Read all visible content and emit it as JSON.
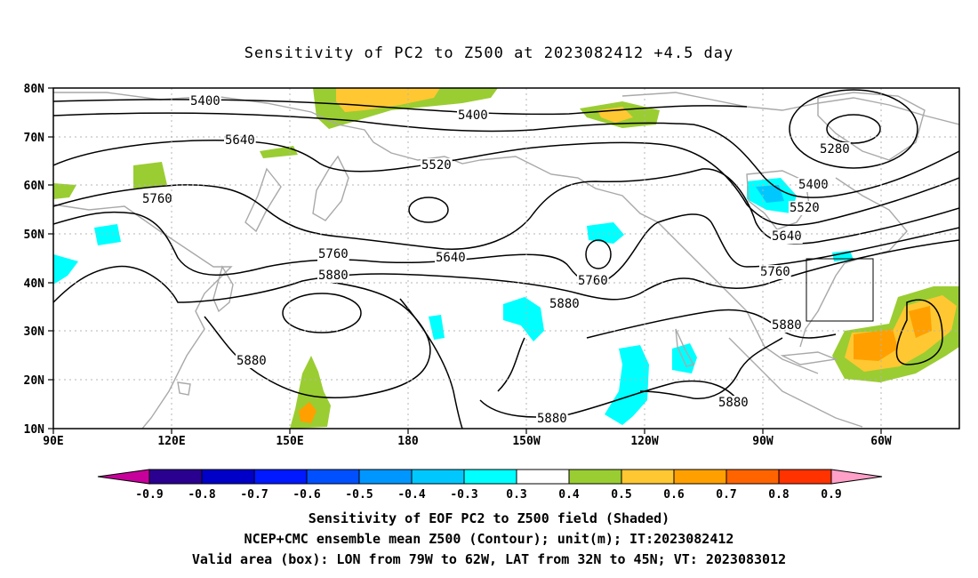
{
  "title": "Sensitivity of PC2 to Z500 at 2023082412 +4.5 day",
  "map": {
    "lat_labels": [
      "80N",
      "70N",
      "60N",
      "50N",
      "40N",
      "30N",
      "20N",
      "10N"
    ],
    "lon_labels": [
      "90E",
      "120E",
      "150E",
      "180",
      "150W",
      "120W",
      "90W",
      "60W"
    ],
    "contour_labels": [
      "5400",
      "5400",
      "5280",
      "5640",
      "5520",
      "5400",
      "5520",
      "5760",
      "5640",
      "5640",
      "5760",
      "5760",
      "5880",
      "5880",
      "5760",
      "5880",
      "5880",
      "5880",
      "5880"
    ],
    "valid_box": {
      "lon_from": "79W",
      "lon_to": "62W",
      "lat_from": "32N",
      "lat_to": "45N"
    },
    "colors": {
      "pos_03_04": "#9acd32",
      "pos_04_05": "#ffc832",
      "pos_05_06": "#ffa000",
      "neg_03_04": "#00ffff",
      "neg_04_05": "#00c8ff",
      "coast": "#a9a9a9",
      "contour": "#000000"
    }
  },
  "colorbar": {
    "labels": [
      "-0.9",
      "-0.8",
      "-0.7",
      "-0.6",
      "-0.5",
      "-0.4",
      "-0.3",
      "0.3",
      "0.4",
      "0.5",
      "0.6",
      "0.7",
      "0.8",
      "0.9"
    ],
    "colors": [
      "#2a0091",
      "#0000c8",
      "#0019ff",
      "#0050ff",
      "#0096ff",
      "#00c8ff",
      "#00ffff",
      "#ffffff",
      "#9acd32",
      "#ffc832",
      "#ffa000",
      "#ff6400",
      "#ff3200",
      "#ff0000"
    ],
    "low_arrow": "#c8009b",
    "high_arrow": "#ffa0c8"
  },
  "footer": {
    "line1": "Sensitivity of EOF PC2 to Z500 field (Shaded)",
    "line2": "NCEP+CMC ensemble mean Z500 (Contour); unit(m); IT:2023082412",
    "line3": "Valid area (box): LON from 79W to 62W, LAT from 32N to 45N; VT: 2023083012"
  }
}
